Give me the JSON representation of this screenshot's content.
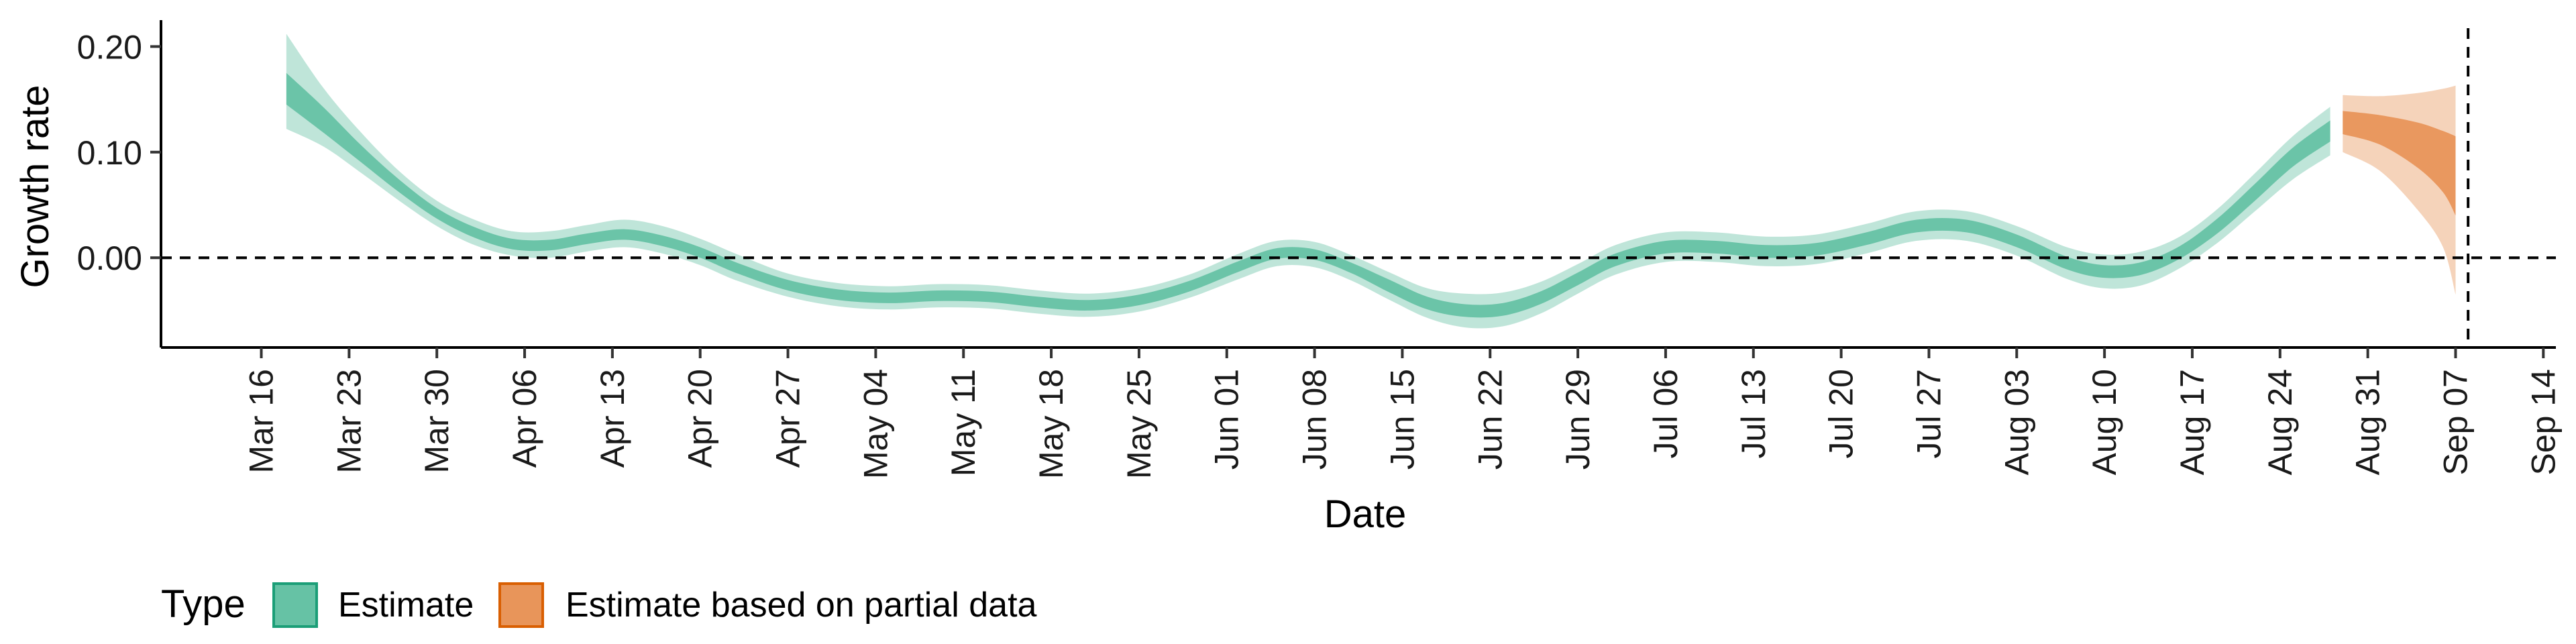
{
  "chart_data": {
    "type": "area",
    "title": "",
    "xlabel": "Date",
    "ylabel": "Growth rate",
    "x_axis": {
      "type": "date",
      "range": [
        "2020-03-08",
        "2020-09-15"
      ],
      "ticks": [
        "2020-03-16",
        "2020-03-23",
        "2020-03-30",
        "2020-04-06",
        "2020-04-13",
        "2020-04-20",
        "2020-04-27",
        "2020-05-04",
        "2020-05-11",
        "2020-05-18",
        "2020-05-25",
        "2020-06-01",
        "2020-06-08",
        "2020-06-15",
        "2020-06-22",
        "2020-06-29",
        "2020-07-06",
        "2020-07-13",
        "2020-07-20",
        "2020-07-27",
        "2020-08-03",
        "2020-08-10",
        "2020-08-17",
        "2020-08-24",
        "2020-08-31",
        "2020-09-07",
        "2020-09-14"
      ],
      "tick_labels": [
        "Mar 16",
        "Mar 23",
        "Mar 30",
        "Apr 06",
        "Apr 13",
        "Apr 20",
        "Apr 27",
        "May 04",
        "May 11",
        "May 18",
        "May 25",
        "Jun 01",
        "Jun 08",
        "Jun 15",
        "Jun 22",
        "Jun 29",
        "Jul 06",
        "Jul 13",
        "Jul 20",
        "Jul 27",
        "Aug 03",
        "Aug 10",
        "Aug 17",
        "Aug 24",
        "Aug 31",
        "Sep 07",
        "Sep 14"
      ]
    },
    "y_axis": {
      "range": [
        -0.085,
        0.225
      ],
      "ticks": [
        0.0,
        0.1,
        0.2
      ],
      "tick_labels": [
        "0.00",
        "0.10",
        "0.20"
      ]
    },
    "reference_lines": [
      {
        "axis": "y",
        "value": 0.0,
        "style": "dashed"
      },
      {
        "axis": "x",
        "value": "2020-09-08",
        "style": "dashed"
      }
    ],
    "grid": false,
    "legend": {
      "title": "Type",
      "position": "bottom-left",
      "entries": [
        {
          "label": "Estimate",
          "color": "#66C2A5",
          "border": "#1B9E77"
        },
        {
          "label": "Estimate based on partial data",
          "color": "#E8955A",
          "border": "#D95F02"
        }
      ]
    },
    "series": [
      {
        "name": "Estimate",
        "color": "#66C2A5",
        "points": [
          {
            "x": "2020-03-18",
            "median": 0.16,
            "lo50": 0.145,
            "hi50": 0.175,
            "lo90": 0.122,
            "hi90": 0.212
          },
          {
            "x": "2020-03-21",
            "median": 0.13,
            "lo50": 0.118,
            "hi50": 0.142,
            "lo90": 0.105,
            "hi90": 0.16
          },
          {
            "x": "2020-03-24",
            "median": 0.098,
            "lo50": 0.09,
            "hi50": 0.106,
            "lo90": 0.08,
            "hi90": 0.118
          },
          {
            "x": "2020-03-27",
            "median": 0.068,
            "lo50": 0.062,
            "hi50": 0.074,
            "lo90": 0.054,
            "hi90": 0.082
          },
          {
            "x": "2020-03-30",
            "median": 0.042,
            "lo50": 0.037,
            "hi50": 0.047,
            "lo90": 0.03,
            "hi90": 0.054
          },
          {
            "x": "2020-04-02",
            "median": 0.024,
            "lo50": 0.019,
            "hi50": 0.029,
            "lo90": 0.012,
            "hi90": 0.036
          },
          {
            "x": "2020-04-05",
            "median": 0.013,
            "lo50": 0.008,
            "hi50": 0.018,
            "lo90": 0.002,
            "hi90": 0.025
          },
          {
            "x": "2020-04-08",
            "median": 0.012,
            "lo50": 0.007,
            "hi50": 0.017,
            "lo90": 0.0,
            "hi90": 0.025
          },
          {
            "x": "2020-04-11",
            "median": 0.018,
            "lo50": 0.013,
            "hi50": 0.023,
            "lo90": 0.006,
            "hi90": 0.031
          },
          {
            "x": "2020-04-14",
            "median": 0.022,
            "lo50": 0.017,
            "hi50": 0.027,
            "lo90": 0.01,
            "hi90": 0.036
          },
          {
            "x": "2020-04-17",
            "median": 0.016,
            "lo50": 0.011,
            "hi50": 0.021,
            "lo90": 0.004,
            "hi90": 0.03
          },
          {
            "x": "2020-04-20",
            "median": 0.005,
            "lo50": 0.0,
            "hi50": 0.01,
            "lo90": -0.007,
            "hi90": 0.018
          },
          {
            "x": "2020-04-23",
            "median": -0.01,
            "lo50": -0.015,
            "hi50": -0.005,
            "lo90": -0.022,
            "hi90": 0.003
          },
          {
            "x": "2020-04-27",
            "median": -0.026,
            "lo50": -0.031,
            "hi50": -0.021,
            "lo90": -0.037,
            "hi90": -0.015
          },
          {
            "x": "2020-05-01",
            "median": -0.035,
            "lo50": -0.04,
            "hi50": -0.03,
            "lo90": -0.046,
            "hi90": -0.024
          },
          {
            "x": "2020-05-05",
            "median": -0.038,
            "lo50": -0.043,
            "hi50": -0.033,
            "lo90": -0.049,
            "hi90": -0.027
          },
          {
            "x": "2020-05-09",
            "median": -0.036,
            "lo50": -0.041,
            "hi50": -0.031,
            "lo90": -0.047,
            "hi90": -0.025
          },
          {
            "x": "2020-05-13",
            "median": -0.037,
            "lo50": -0.042,
            "hi50": -0.032,
            "lo90": -0.048,
            "hi90": -0.026
          },
          {
            "x": "2020-05-17",
            "median": -0.042,
            "lo50": -0.047,
            "hi50": -0.037,
            "lo90": -0.053,
            "hi90": -0.031
          },
          {
            "x": "2020-05-21",
            "median": -0.045,
            "lo50": -0.05,
            "hi50": -0.04,
            "lo90": -0.056,
            "hi90": -0.034
          },
          {
            "x": "2020-05-25",
            "median": -0.04,
            "lo50": -0.045,
            "hi50": -0.035,
            "lo90": -0.051,
            "hi90": -0.029
          },
          {
            "x": "2020-05-29",
            "median": -0.027,
            "lo50": -0.032,
            "hi50": -0.022,
            "lo90": -0.038,
            "hi90": -0.016
          },
          {
            "x": "2020-06-02",
            "median": -0.008,
            "lo50": -0.013,
            "hi50": -0.003,
            "lo90": -0.02,
            "hi90": 0.004
          },
          {
            "x": "2020-06-05",
            "median": 0.004,
            "lo50": -0.001,
            "hi50": 0.009,
            "lo90": -0.008,
            "hi90": 0.016
          },
          {
            "x": "2020-06-08",
            "median": 0.003,
            "lo50": -0.002,
            "hi50": 0.008,
            "lo90": -0.009,
            "hi90": 0.015
          },
          {
            "x": "2020-06-11",
            "median": -0.01,
            "lo50": -0.015,
            "hi50": -0.005,
            "lo90": -0.022,
            "hi90": 0.002
          },
          {
            "x": "2020-06-14",
            "median": -0.027,
            "lo50": -0.033,
            "hi50": -0.021,
            "lo90": -0.04,
            "hi90": -0.014
          },
          {
            "x": "2020-06-17",
            "median": -0.043,
            "lo50": -0.049,
            "hi50": -0.037,
            "lo90": -0.057,
            "hi90": -0.029
          },
          {
            "x": "2020-06-20",
            "median": -0.05,
            "lo50": -0.056,
            "hi50": -0.044,
            "lo90": -0.066,
            "hi90": -0.034
          },
          {
            "x": "2020-06-23",
            "median": -0.049,
            "lo50": -0.055,
            "hi50": -0.043,
            "lo90": -0.065,
            "hi90": -0.033
          },
          {
            "x": "2020-06-26",
            "median": -0.038,
            "lo50": -0.044,
            "hi50": -0.032,
            "lo90": -0.053,
            "hi90": -0.023
          },
          {
            "x": "2020-06-29",
            "median": -0.02,
            "lo50": -0.026,
            "hi50": -0.014,
            "lo90": -0.034,
            "hi90": -0.006
          },
          {
            "x": "2020-07-02",
            "median": -0.002,
            "lo50": -0.008,
            "hi50": 0.004,
            "lo90": -0.016,
            "hi90": 0.012
          },
          {
            "x": "2020-07-06",
            "median": 0.01,
            "lo50": 0.004,
            "hi50": 0.016,
            "lo90": -0.004,
            "hi90": 0.024
          },
          {
            "x": "2020-07-10",
            "median": 0.01,
            "lo50": 0.004,
            "hi50": 0.016,
            "lo90": -0.004,
            "hi90": 0.024
          },
          {
            "x": "2020-07-14",
            "median": 0.006,
            "lo50": 0.0,
            "hi50": 0.012,
            "lo90": -0.008,
            "hi90": 0.02
          },
          {
            "x": "2020-07-18",
            "median": 0.008,
            "lo50": 0.002,
            "hi50": 0.014,
            "lo90": -0.006,
            "hi90": 0.022
          },
          {
            "x": "2020-07-22",
            "median": 0.018,
            "lo50": 0.012,
            "hi50": 0.024,
            "lo90": 0.004,
            "hi90": 0.032
          },
          {
            "x": "2020-07-26",
            "median": 0.03,
            "lo50": 0.024,
            "hi50": 0.036,
            "lo90": 0.016,
            "hi90": 0.044
          },
          {
            "x": "2020-07-30",
            "median": 0.03,
            "lo50": 0.024,
            "hi50": 0.036,
            "lo90": 0.016,
            "hi90": 0.044
          },
          {
            "x": "2020-08-03",
            "median": 0.016,
            "lo50": 0.01,
            "hi50": 0.022,
            "lo90": 0.002,
            "hi90": 0.03
          },
          {
            "x": "2020-08-07",
            "median": -0.005,
            "lo50": -0.011,
            "hi50": 0.001,
            "lo90": -0.02,
            "hi90": 0.01
          },
          {
            "x": "2020-08-10",
            "median": -0.013,
            "lo50": -0.019,
            "hi50": -0.007,
            "lo90": -0.029,
            "hi90": 0.003
          },
          {
            "x": "2020-08-13",
            "median": -0.01,
            "lo50": -0.016,
            "hi50": -0.004,
            "lo90": -0.026,
            "hi90": 0.006
          },
          {
            "x": "2020-08-16",
            "median": 0.005,
            "lo50": -0.001,
            "hi50": 0.011,
            "lo90": -0.01,
            "hi90": 0.02
          },
          {
            "x": "2020-08-19",
            "median": 0.03,
            "lo50": 0.023,
            "hi50": 0.037,
            "lo90": 0.014,
            "hi90": 0.046
          },
          {
            "x": "2020-08-22",
            "median": 0.062,
            "lo50": 0.054,
            "hi50": 0.07,
            "lo90": 0.044,
            "hi90": 0.08
          },
          {
            "x": "2020-08-25",
            "median": 0.095,
            "lo50": 0.086,
            "hi50": 0.104,
            "lo90": 0.074,
            "hi90": 0.115
          },
          {
            "x": "2020-08-28",
            "median": 0.12,
            "lo50": 0.11,
            "hi50": 0.13,
            "lo90": 0.097,
            "hi90": 0.143
          }
        ]
      },
      {
        "name": "Estimate based on partial data",
        "color": "#E8955A",
        "points": [
          {
            "x": "2020-08-29",
            "median": 0.128,
            "lo50": 0.117,
            "hi50": 0.139,
            "lo90": 0.1,
            "hi90": 0.154
          },
          {
            "x": "2020-09-01",
            "median": 0.122,
            "lo50": 0.107,
            "hi50": 0.135,
            "lo90": 0.082,
            "hi90": 0.153
          },
          {
            "x": "2020-09-04",
            "median": 0.11,
            "lo50": 0.085,
            "hi50": 0.128,
            "lo90": 0.045,
            "hi90": 0.156
          },
          {
            "x": "2020-09-06",
            "median": 0.095,
            "lo50": 0.062,
            "hi50": 0.12,
            "lo90": 0.01,
            "hi90": 0.16
          },
          {
            "x": "2020-09-07",
            "median": 0.085,
            "lo50": 0.04,
            "hi50": 0.115,
            "lo90": -0.035,
            "hi90": 0.163
          }
        ]
      }
    ]
  }
}
